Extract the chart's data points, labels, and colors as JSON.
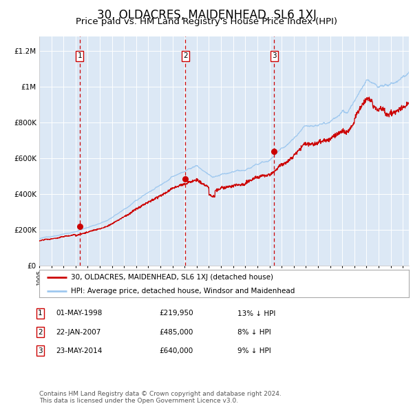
{
  "title": "30, OLDACRES, MAIDENHEAD, SL6 1XJ",
  "subtitle": "Price paid vs. HM Land Registry's House Price Index (HPI)",
  "title_fontsize": 12,
  "subtitle_fontsize": 9.5,
  "background_color": "#dce8f5",
  "grid_color": "#ffffff",
  "sale_dates_num": [
    1998.33,
    2007.05,
    2014.38
  ],
  "sale_prices": [
    219950,
    485000,
    640000
  ],
  "sale_labels": [
    "1",
    "2",
    "3"
  ],
  "vline_color": "#cc0000",
  "dot_color": "#cc0000",
  "hpi_line_color": "#9ec8ef",
  "price_line_color": "#cc0000",
  "legend_entries": [
    "30, OLDACRES, MAIDENHEAD, SL6 1XJ (detached house)",
    "HPI: Average price, detached house, Windsor and Maidenhead"
  ],
  "table_rows": [
    [
      "1",
      "01-MAY-1998",
      "£219,950",
      "13% ↓ HPI"
    ],
    [
      "2",
      "22-JAN-2007",
      "£485,000",
      "8% ↓ HPI"
    ],
    [
      "3",
      "23-MAY-2014",
      "£640,000",
      "9% ↓ HPI"
    ]
  ],
  "footnote": "Contains HM Land Registry data © Crown copyright and database right 2024.\nThis data is licensed under the Open Government Licence v3.0.",
  "ylim": [
    0,
    1280000
  ],
  "xlim_start": 1995.0,
  "xlim_end": 2025.5,
  "yticks": [
    0,
    200000,
    400000,
    600000,
    800000,
    1000000,
    1200000
  ],
  "ytick_labels": [
    "£0",
    "£200K",
    "£400K",
    "£600K",
    "£800K",
    "£1M",
    "£1.2M"
  ]
}
